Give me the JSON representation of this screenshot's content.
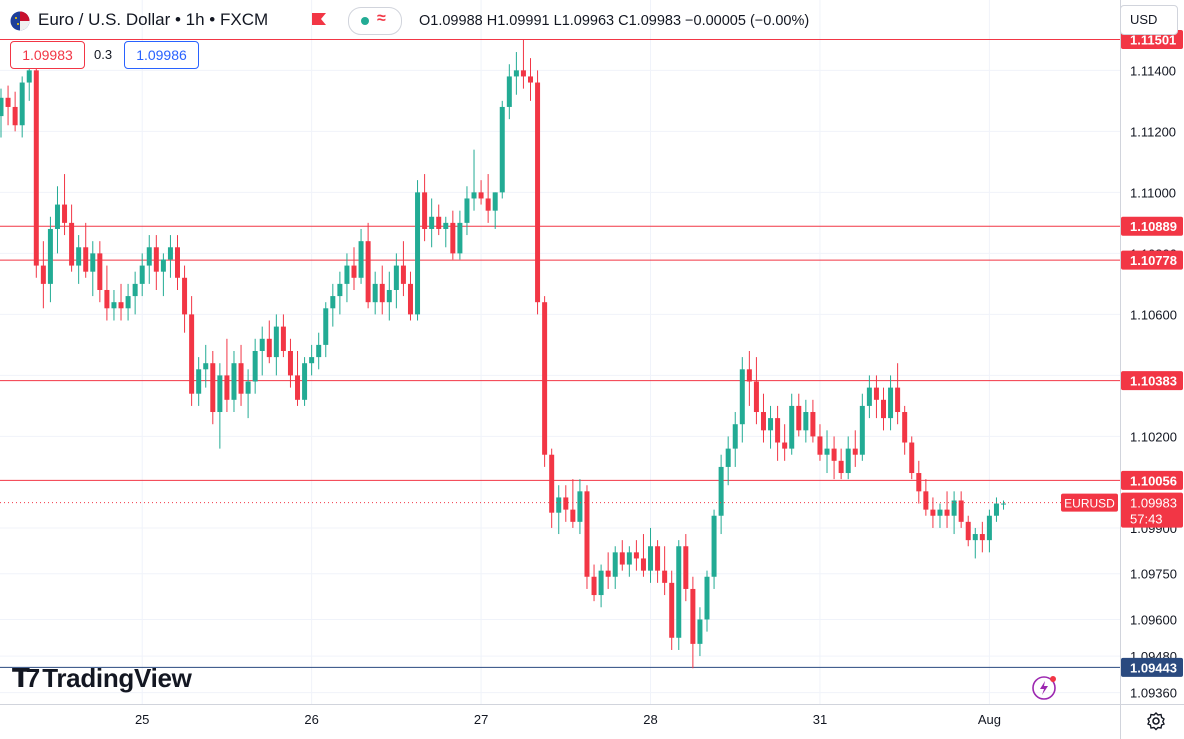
{
  "header": {
    "title": "Euro / U.S. Dollar • 1h • FXCM",
    "ohlc": "O1.09988 H1.09991 L1.09963 C1.09983 −0.00005 (−0.00%)"
  },
  "trade": {
    "sell_price": "1.09983",
    "spread": "0.3",
    "buy_price": "1.09986"
  },
  "currency_label": "USD",
  "logo_text": "TradingView",
  "colors": {
    "up": "#22ab94",
    "down": "#f23645",
    "line": "#f23645",
    "support": "#2a4a7f",
    "grid": "#f0f3fa"
  },
  "chart_data": {
    "type": "candlestick",
    "symbol": "EURUSD",
    "countdown": "57:43",
    "last_price": 1.09983,
    "y_ticks": [
      1.114,
      1.112,
      1.11,
      1.108,
      1.106,
      1.104,
      1.102,
      1.099,
      1.0975,
      1.096,
      1.0948,
      1.0936
    ],
    "y_tick_labels": [
      "1.11400",
      "1.11200",
      "1.11000",
      "1.10800",
      "1.10600",
      "1.10400",
      "1.10200",
      "1.09900",
      "1.09750",
      "1.09600",
      "1.09480",
      "1.09360"
    ],
    "x_labels": [
      {
        "label": "25",
        "index": 20
      },
      {
        "label": "26",
        "index": 44
      },
      {
        "label": "27",
        "index": 68
      },
      {
        "label": "28",
        "index": 92
      },
      {
        "label": "31",
        "index": 116
      },
      {
        "label": "Aug",
        "index": 140
      }
    ],
    "horizontal_lines": [
      {
        "value": 1.11501,
        "label": "1.11501",
        "color": "#f23645"
      },
      {
        "value": 1.10889,
        "label": "1.10889",
        "color": "#f23645"
      },
      {
        "value": 1.10778,
        "label": "1.10778",
        "color": "#f23645"
      },
      {
        "value": 1.10383,
        "label": "1.10383",
        "color": "#f23645"
      },
      {
        "value": 1.10056,
        "label": "1.10056",
        "color": "#f23645"
      },
      {
        "value": 1.09443,
        "label": "1.09443",
        "color": "#2a4a7f"
      }
    ],
    "candles": [
      [
        1.1125,
        1.1134,
        1.1118,
        1.1131
      ],
      [
        1.1131,
        1.1135,
        1.1122,
        1.1128
      ],
      [
        1.1128,
        1.1133,
        1.112,
        1.1122
      ],
      [
        1.1122,
        1.1138,
        1.1118,
        1.1136
      ],
      [
        1.1136,
        1.1142,
        1.113,
        1.114
      ],
      [
        1.114,
        1.1144,
        1.1072,
        1.1076
      ],
      [
        1.1076,
        1.1084,
        1.1062,
        1.107
      ],
      [
        1.107,
        1.1092,
        1.1064,
        1.1088
      ],
      [
        1.1088,
        1.1102,
        1.108,
        1.1096
      ],
      [
        1.1096,
        1.1106,
        1.1086,
        1.109
      ],
      [
        1.109,
        1.1096,
        1.1074,
        1.1076
      ],
      [
        1.1076,
        1.1086,
        1.107,
        1.1082
      ],
      [
        1.1082,
        1.109,
        1.1072,
        1.1074
      ],
      [
        1.1074,
        1.1084,
        1.1066,
        1.108
      ],
      [
        1.108,
        1.1084,
        1.1064,
        1.1068
      ],
      [
        1.1068,
        1.1076,
        1.1058,
        1.1062
      ],
      [
        1.1062,
        1.1068,
        1.1058,
        1.1064
      ],
      [
        1.1064,
        1.107,
        1.1058,
        1.1062
      ],
      [
        1.1062,
        1.107,
        1.1058,
        1.1066
      ],
      [
        1.1066,
        1.1074,
        1.106,
        1.107
      ],
      [
        1.107,
        1.108,
        1.1066,
        1.1076
      ],
      [
        1.1076,
        1.1086,
        1.107,
        1.1082
      ],
      [
        1.1082,
        1.1086,
        1.1068,
        1.1074
      ],
      [
        1.1074,
        1.108,
        1.1066,
        1.1078
      ],
      [
        1.1078,
        1.1086,
        1.1072,
        1.1082
      ],
      [
        1.1082,
        1.1086,
        1.1068,
        1.1072
      ],
      [
        1.1072,
        1.1076,
        1.1054,
        1.106
      ],
      [
        1.106,
        1.1066,
        1.103,
        1.1034
      ],
      [
        1.1034,
        1.1046,
        1.103,
        1.1042
      ],
      [
        1.1042,
        1.105,
        1.1036,
        1.1044
      ],
      [
        1.1044,
        1.1048,
        1.1024,
        1.1028
      ],
      [
        1.1028,
        1.1044,
        1.1016,
        1.104
      ],
      [
        1.104,
        1.1052,
        1.1028,
        1.1032
      ],
      [
        1.1032,
        1.1048,
        1.1028,
        1.1044
      ],
      [
        1.1044,
        1.105,
        1.103,
        1.1034
      ],
      [
        1.1034,
        1.1042,
        1.1026,
        1.1038
      ],
      [
        1.1038,
        1.1052,
        1.1034,
        1.1048
      ],
      [
        1.1048,
        1.1056,
        1.104,
        1.1052
      ],
      [
        1.1052,
        1.1058,
        1.1044,
        1.1046
      ],
      [
        1.1046,
        1.106,
        1.104,
        1.1056
      ],
      [
        1.1056,
        1.106,
        1.1046,
        1.1048
      ],
      [
        1.1048,
        1.1052,
        1.1036,
        1.104
      ],
      [
        1.104,
        1.1048,
        1.103,
        1.1032
      ],
      [
        1.1032,
        1.1046,
        1.103,
        1.1044
      ],
      [
        1.1044,
        1.105,
        1.104,
        1.1046
      ],
      [
        1.1046,
        1.1054,
        1.1042,
        1.105
      ],
      [
        1.105,
        1.1064,
        1.1046,
        1.1062
      ],
      [
        1.1062,
        1.107,
        1.1056,
        1.1066
      ],
      [
        1.1066,
        1.1074,
        1.106,
        1.107
      ],
      [
        1.107,
        1.108,
        1.1064,
        1.1076
      ],
      [
        1.1076,
        1.1082,
        1.1068,
        1.1072
      ],
      [
        1.1072,
        1.1088,
        1.107,
        1.1084
      ],
      [
        1.1084,
        1.109,
        1.1062,
        1.1064
      ],
      [
        1.1064,
        1.1074,
        1.106,
        1.107
      ],
      [
        1.107,
        1.1076,
        1.106,
        1.1064
      ],
      [
        1.1064,
        1.1074,
        1.1058,
        1.1068
      ],
      [
        1.1068,
        1.108,
        1.1062,
        1.1076
      ],
      [
        1.1076,
        1.1084,
        1.1066,
        1.107
      ],
      [
        1.107,
        1.1074,
        1.1058,
        1.106
      ],
      [
        1.106,
        1.1104,
        1.1058,
        1.11
      ],
      [
        1.11,
        1.1106,
        1.1084,
        1.1088
      ],
      [
        1.1088,
        1.1098,
        1.1082,
        1.1092
      ],
      [
        1.1092,
        1.1096,
        1.1086,
        1.1088
      ],
      [
        1.1088,
        1.1092,
        1.1082,
        1.109
      ],
      [
        1.109,
        1.1094,
        1.1078,
        1.108
      ],
      [
        1.108,
        1.1094,
        1.1078,
        1.109
      ],
      [
        1.109,
        1.1102,
        1.1086,
        1.1098
      ],
      [
        1.1098,
        1.1114,
        1.1094,
        1.11
      ],
      [
        1.11,
        1.1104,
        1.1096,
        1.1098
      ],
      [
        1.1098,
        1.1106,
        1.109,
        1.1094
      ],
      [
        1.1094,
        1.11,
        1.1088,
        1.11
      ],
      [
        1.11,
        1.113,
        1.1098,
        1.1128
      ],
      [
        1.1128,
        1.1142,
        1.1124,
        1.1138
      ],
      [
        1.1138,
        1.1146,
        1.1132,
        1.114
      ],
      [
        1.114,
        1.115,
        1.1134,
        1.1138
      ],
      [
        1.1138,
        1.1144,
        1.113,
        1.1136
      ],
      [
        1.1136,
        1.114,
        1.106,
        1.1064
      ],
      [
        1.1064,
        1.1066,
        1.101,
        1.1014
      ],
      [
        1.1014,
        1.1016,
        1.099,
        1.0995
      ],
      [
        1.0995,
        1.1004,
        1.0988,
        1.1
      ],
      [
        1.1,
        1.1004,
        1.0992,
        1.0996
      ],
      [
        1.0996,
        1.1006,
        1.099,
        1.0992
      ],
      [
        1.0992,
        1.1006,
        1.0988,
        1.1002
      ],
      [
        1.1002,
        1.1004,
        1.097,
        1.0974
      ],
      [
        1.0974,
        1.0978,
        1.0966,
        1.0968
      ],
      [
        1.0968,
        1.0978,
        1.0964,
        1.0976
      ],
      [
        1.0976,
        1.0982,
        1.097,
        1.0974
      ],
      [
        1.0974,
        1.0984,
        1.097,
        1.0982
      ],
      [
        1.0982,
        1.0986,
        1.0976,
        1.0978
      ],
      [
        1.0978,
        1.0984,
        1.0974,
        1.0982
      ],
      [
        1.0982,
        1.0986,
        1.0976,
        1.098
      ],
      [
        1.098,
        1.0988,
        1.0974,
        1.0976
      ],
      [
        1.0976,
        1.099,
        1.0972,
        1.0984
      ],
      [
        1.0984,
        1.0986,
        1.0972,
        1.0976
      ],
      [
        1.0976,
        1.0984,
        1.0968,
        1.0972
      ],
      [
        1.0972,
        1.0976,
        1.095,
        1.0954
      ],
      [
        1.0954,
        1.0986,
        1.095,
        1.0984
      ],
      [
        1.0984,
        1.0988,
        1.0966,
        1.097
      ],
      [
        1.097,
        1.0974,
        1.0944,
        1.0952
      ],
      [
        1.0952,
        1.0964,
        1.0948,
        1.096
      ],
      [
        1.096,
        1.0976,
        1.0956,
        1.0974
      ],
      [
        1.0974,
        1.0996,
        1.097,
        1.0994
      ],
      [
        1.0994,
        1.1014,
        1.0988,
        1.101
      ],
      [
        1.101,
        1.102,
        1.1004,
        1.1016
      ],
      [
        1.1016,
        1.1028,
        1.101,
        1.1024
      ],
      [
        1.1024,
        1.1046,
        1.1018,
        1.1042
      ],
      [
        1.1042,
        1.1048,
        1.103,
        1.1038
      ],
      [
        1.1038,
        1.1046,
        1.1024,
        1.1028
      ],
      [
        1.1028,
        1.1034,
        1.1018,
        1.1022
      ],
      [
        1.1022,
        1.103,
        1.1016,
        1.1026
      ],
      [
        1.1026,
        1.103,
        1.1012,
        1.1018
      ],
      [
        1.1018,
        1.1024,
        1.1012,
        1.1016
      ],
      [
        1.1016,
        1.1034,
        1.1014,
        1.103
      ],
      [
        1.103,
        1.1034,
        1.102,
        1.1022
      ],
      [
        1.1022,
        1.1032,
        1.1018,
        1.1028
      ],
      [
        1.1028,
        1.1032,
        1.1018,
        1.102
      ],
      [
        1.102,
        1.1024,
        1.1012,
        1.1014
      ],
      [
        1.1014,
        1.1022,
        1.1008,
        1.1016
      ],
      [
        1.1016,
        1.102,
        1.1006,
        1.1012
      ],
      [
        1.1012,
        1.1016,
        1.1006,
        1.1008
      ],
      [
        1.1008,
        1.102,
        1.1006,
        1.1016
      ],
      [
        1.1016,
        1.1022,
        1.101,
        1.1014
      ],
      [
        1.1014,
        1.1034,
        1.1012,
        1.103
      ],
      [
        1.103,
        1.104,
        1.1026,
        1.1036
      ],
      [
        1.1036,
        1.104,
        1.1026,
        1.1032
      ],
      [
        1.1032,
        1.1036,
        1.1022,
        1.1026
      ],
      [
        1.1026,
        1.104,
        1.1022,
        1.1036
      ],
      [
        1.1036,
        1.1044,
        1.1024,
        1.1028
      ],
      [
        1.1028,
        1.103,
        1.1014,
        1.1018
      ],
      [
        1.1018,
        1.102,
        1.1006,
        1.1008
      ],
      [
        1.1008,
        1.1012,
        1.0998,
        1.1002
      ],
      [
        1.1002,
        1.1006,
        1.0994,
        1.0996
      ],
      [
        1.0996,
        1.1,
        1.099,
        1.0994
      ],
      [
        1.0994,
        1.0998,
        1.099,
        1.0996
      ],
      [
        1.0996,
        1.1002,
        1.099,
        1.0994
      ],
      [
        1.0994,
        1.1002,
        1.0988,
        1.0999
      ],
      [
        1.0999,
        1.1002,
        1.099,
        1.0992
      ],
      [
        1.0992,
        1.0994,
        1.0984,
        1.0986
      ],
      [
        1.0986,
        1.099,
        1.098,
        1.0988
      ],
      [
        1.0988,
        1.0992,
        1.0982,
        1.0986
      ],
      [
        1.0986,
        1.0996,
        1.0982,
        1.0994
      ],
      [
        1.0994,
        1.1,
        1.0992,
        1.0998
      ],
      [
        1.0998,
        1.0999,
        1.0996,
        1.0998
      ]
    ]
  }
}
